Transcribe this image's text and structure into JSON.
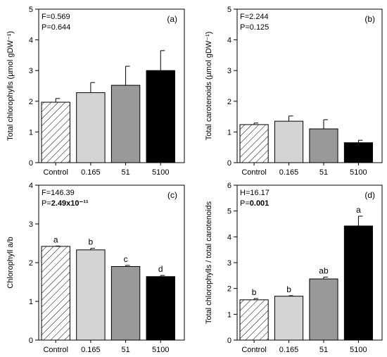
{
  "chart_data": [
    {
      "type": "bar",
      "panel_label": "(a)",
      "categories": [
        "Control",
        "0.165",
        "51",
        "5100"
      ],
      "values": [
        1.97,
        2.28,
        2.52,
        3.0
      ],
      "errors": [
        0.12,
        0.33,
        0.62,
        0.65
      ],
      "letters": [
        "",
        "",
        "",
        ""
      ],
      "ylabel": "Total chlorophylls (µmol gDW⁻¹)",
      "ylim": [
        0,
        5
      ],
      "yticks": [
        0,
        1,
        2,
        3,
        4,
        5
      ],
      "stats": {
        "line1": "F=0.569",
        "line2_prefix": "P=",
        "line2_value": "0.644",
        "line2_bold": false
      }
    },
    {
      "type": "bar",
      "panel_label": "(b)",
      "categories": [
        "Control",
        "0.165",
        "51",
        "5100"
      ],
      "values": [
        1.24,
        1.35,
        1.1,
        0.65
      ],
      "errors": [
        0.05,
        0.17,
        0.3,
        0.08
      ],
      "letters": [
        "",
        "",
        "",
        ""
      ],
      "ylabel": "Total carotenoids (µmol gDW⁻¹)",
      "ylim": [
        0,
        5
      ],
      "yticks": [
        0,
        1,
        2,
        3,
        4,
        5
      ],
      "stats": {
        "line1": "F=2.244",
        "line2_prefix": "P=",
        "line2_value": "0.125",
        "line2_bold": false
      }
    },
    {
      "type": "bar",
      "panel_label": "(c)",
      "categories": [
        "Control",
        "0.165",
        "51",
        "5100"
      ],
      "values": [
        2.42,
        2.33,
        1.9,
        1.64
      ],
      "errors": [
        0.01,
        0.04,
        0.03,
        0.03
      ],
      "letters": [
        "a",
        "b",
        "c",
        "d"
      ],
      "ylabel": "Chlorophyll a/b",
      "ylim": [
        0,
        4
      ],
      "yticks": [
        0,
        1,
        2,
        3,
        4
      ],
      "stats": {
        "line1": "F=146.39",
        "line2_prefix": "P=",
        "line2_value": "2.49x10⁻¹¹",
        "line2_bold": true
      }
    },
    {
      "type": "bar",
      "panel_label": "(d)",
      "categories": [
        "Control",
        "0.165",
        "51",
        "5100"
      ],
      "values": [
        1.56,
        1.7,
        2.37,
        4.42
      ],
      "errors": [
        0.05,
        0.02,
        0.07,
        0.38
      ],
      "letters": [
        "b",
        "b",
        "ab",
        "a"
      ],
      "ylabel": "Total chlorophylls / total carotenoids",
      "ylim": [
        0,
        6
      ],
      "yticks": [
        0,
        1,
        2,
        3,
        4,
        5,
        6
      ],
      "stats": {
        "line1": "H=16.17",
        "line2_prefix": "P=",
        "line2_value": "0.001",
        "line2_bold": true
      }
    }
  ],
  "bar_colors": [
    "hatched",
    "#d4d4d4",
    "#999999",
    "#000000"
  ]
}
